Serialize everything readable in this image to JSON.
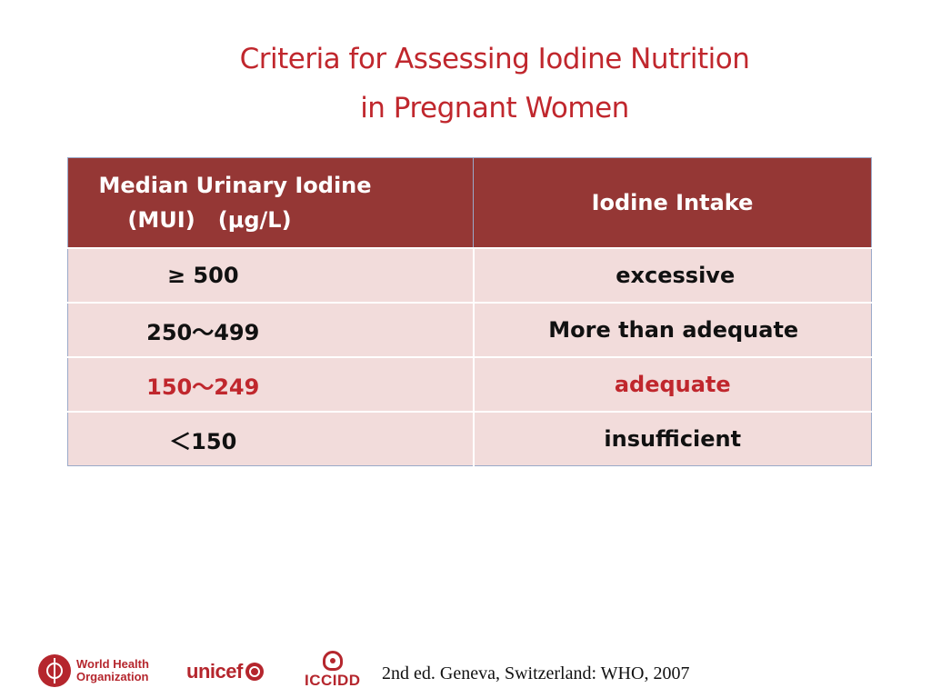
{
  "title": {
    "line1": "Criteria for Assessing Iodine Nutrition",
    "line2": "in Pregnant Women"
  },
  "table": {
    "headers": {
      "col1_line1": "Median Urinary Iodine",
      "col1_line2": "(MUI)   (μg/L)",
      "col2": "Iodine Intake"
    },
    "rows": [
      {
        "mui": "≥ 500",
        "intake": "excessive",
        "highlight": false
      },
      {
        "mui": "250～499",
        "intake": "More than adequate",
        "highlight": false
      },
      {
        "mui": "150～249",
        "intake": "adequate",
        "highlight": true
      },
      {
        "mui": "＜150",
        "intake": "insufficient",
        "highlight": false
      }
    ]
  },
  "colors": {
    "title": "#c0272d",
    "header_bg": "#953735",
    "row_bg": "#f2dcdb",
    "highlight_text": "#c0272d"
  },
  "footer": {
    "logos": {
      "who": "World Health\nOrganization",
      "unicef": "unicef",
      "iccidd": "ICCIDD"
    },
    "citation": "2nd ed. Geneva, Switzerland: WHO, 2007"
  }
}
